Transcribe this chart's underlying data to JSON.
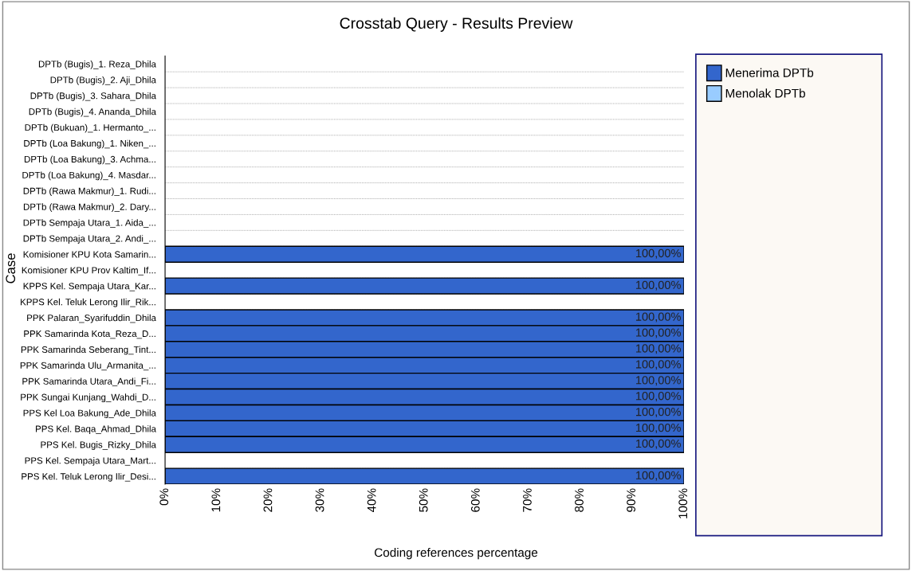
{
  "chart_data": {
    "type": "bar",
    "orientation": "horizontal",
    "title": "Crosstab Query - Results Preview",
    "xlabel": "Coding references percentage",
    "ylabel": "Case",
    "categories": [
      "DPTb (Bugis)_1. Reza_Dhila",
      "DPTb (Bugis)_2. Aji_Dhila",
      "DPTb (Bugis)_3. Sahara_Dhila",
      "DPTb (Bugis)_4. Ananda_Dhila",
      "DPTb (Bukuan)_1. Hermanto_...",
      "DPTb (Loa Bakung)_1. Niken_...",
      "DPTb (Loa Bakung)_3. Achma...",
      "DPTb (Loa Bakung)_4. Masdar...",
      "DPTb (Rawa Makmur)_1. Rudi...",
      "DPTb (Rawa Makmur)_2. Dary...",
      "DPTb Sempaja Utara_1. Aida_...",
      "DPTb Sempaja Utara_2. Andi_...",
      "Komisioner KPU Kota Samarin...",
      "Komisioner KPU Prov Kaltim_If...",
      "KPPS Kel. Sempaja Utara_Kar...",
      "KPPS Kel. Teluk Lerong Ilir_Rik...",
      "PPK Palaran_Syarifuddin_Dhila",
      "PPK Samarinda Kota_Reza_D...",
      "PPK Samarinda Seberang_Tint...",
      "PPK Samarinda Ulu_Armanita_...",
      "PPK Samarinda Utara_Andi_Fi...",
      "PPK Sungai Kunjang_Wahdi_D...",
      "PPS Kel Loa Bakung_Ade_Dhila",
      "PPS Kel. Baqa_Ahmad_Dhila",
      "PPS Kel. Bugis_Rizky_Dhila",
      "PPS Kel. Sempaja Utara_Mart...",
      "PPS Kel. Teluk Lerong Ilir_Desi..."
    ],
    "series": [
      {
        "name": "Menerima DPTb",
        "color": "#3366cc",
        "values": [
          null,
          null,
          null,
          null,
          null,
          null,
          null,
          null,
          null,
          null,
          null,
          null,
          100,
          null,
          100,
          null,
          100,
          100,
          100,
          100,
          100,
          100,
          100,
          100,
          100,
          null,
          100
        ],
        "value_labels": [
          null,
          null,
          null,
          null,
          null,
          null,
          null,
          null,
          null,
          null,
          null,
          null,
          "100,00%",
          null,
          "100,00%",
          null,
          "100,00%",
          "100,00%",
          "100,00%",
          "100,00%",
          "100,00%",
          "100,00%",
          "100,00%",
          "100,00%",
          "100,00%",
          null,
          "100,00%"
        ]
      },
      {
        "name": "Menolak DPTb",
        "color": "#99ccff",
        "values": [
          null,
          null,
          null,
          null,
          null,
          null,
          null,
          null,
          null,
          null,
          null,
          null,
          null,
          null,
          null,
          null,
          null,
          null,
          null,
          null,
          null,
          null,
          null,
          null,
          null,
          null,
          null
        ]
      }
    ],
    "xlim": [
      0,
      100
    ],
    "xticks": [
      {
        "value": 0,
        "label": "0%"
      },
      {
        "value": 10,
        "label": "10%"
      },
      {
        "value": 20,
        "label": "20%"
      },
      {
        "value": 30,
        "label": "30%"
      },
      {
        "value": 40,
        "label": "40%"
      },
      {
        "value": 50,
        "label": "50%"
      },
      {
        "value": 60,
        "label": "60%"
      },
      {
        "value": 70,
        "label": "70%"
      },
      {
        "value": 80,
        "label": "80%"
      },
      {
        "value": 90,
        "label": "90%"
      },
      {
        "value": 100,
        "label": "100%"
      }
    ],
    "grid": "y",
    "legend": "right"
  }
}
